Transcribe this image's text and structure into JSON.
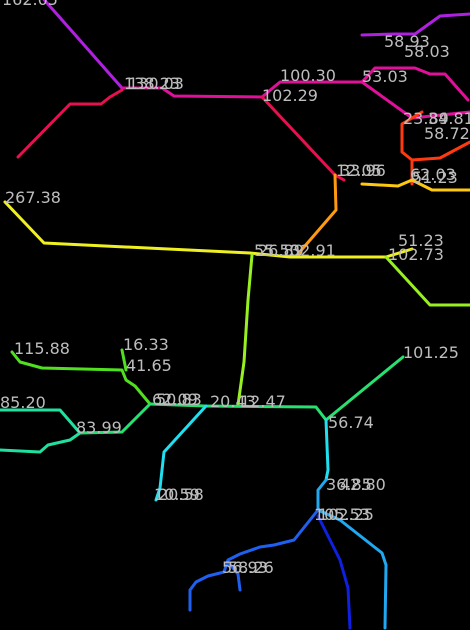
{
  "colors": {
    "background": "#000000",
    "label": "#bdbdbd",
    "violet": "#b020e0",
    "magenta": "#e0109a",
    "crimson": "#e8104e",
    "orange_red": "#ff3a10",
    "orange": "#ff9a10",
    "amber": "#ffc810",
    "yellow": "#f0f020",
    "chartreuse": "#98f020",
    "lime": "#50e020",
    "green": "#28e070",
    "spring": "#20e0a0",
    "cyan": "#20e0f0",
    "sky": "#20a8f0",
    "blue": "#2060f0",
    "deep_blue": "#1020e0"
  },
  "labels": [
    {
      "text": "162.05"
    },
    {
      "text": "58.93"
    },
    {
      "text": "58.03"
    },
    {
      "text": "100.30"
    },
    {
      "text": "53.03"
    },
    {
      "text": "138.23"
    },
    {
      "text": "130.03"
    },
    {
      "text": "102.29"
    },
    {
      "text": "23.89"
    },
    {
      "text": "34.81"
    },
    {
      "text": "58.72"
    },
    {
      "text": "12.05"
    },
    {
      "text": "33.96"
    },
    {
      "text": "62.03"
    },
    {
      "text": "51.23"
    },
    {
      "text": "267.38"
    },
    {
      "text": "55.50"
    },
    {
      "text": "32.91"
    },
    {
      "text": "26.89"
    },
    {
      "text": "51.23"
    },
    {
      "text": "102.73"
    },
    {
      "text": "16.33"
    },
    {
      "text": "115.88"
    },
    {
      "text": "41.65"
    },
    {
      "text": "101.25"
    },
    {
      "text": "85.20"
    },
    {
      "text": "62.09"
    },
    {
      "text": "50.83"
    },
    {
      "text": "20.43"
    },
    {
      "text": "12.47"
    },
    {
      "text": "56.74"
    },
    {
      "text": "83.99"
    },
    {
      "text": "10.59"
    },
    {
      "text": "20.58"
    },
    {
      "text": "36.85"
    },
    {
      "text": "42.80"
    },
    {
      "text": "105.53"
    },
    {
      "text": "102.25"
    },
    {
      "text": "56.93"
    },
    {
      "text": "58.26"
    }
  ]
}
